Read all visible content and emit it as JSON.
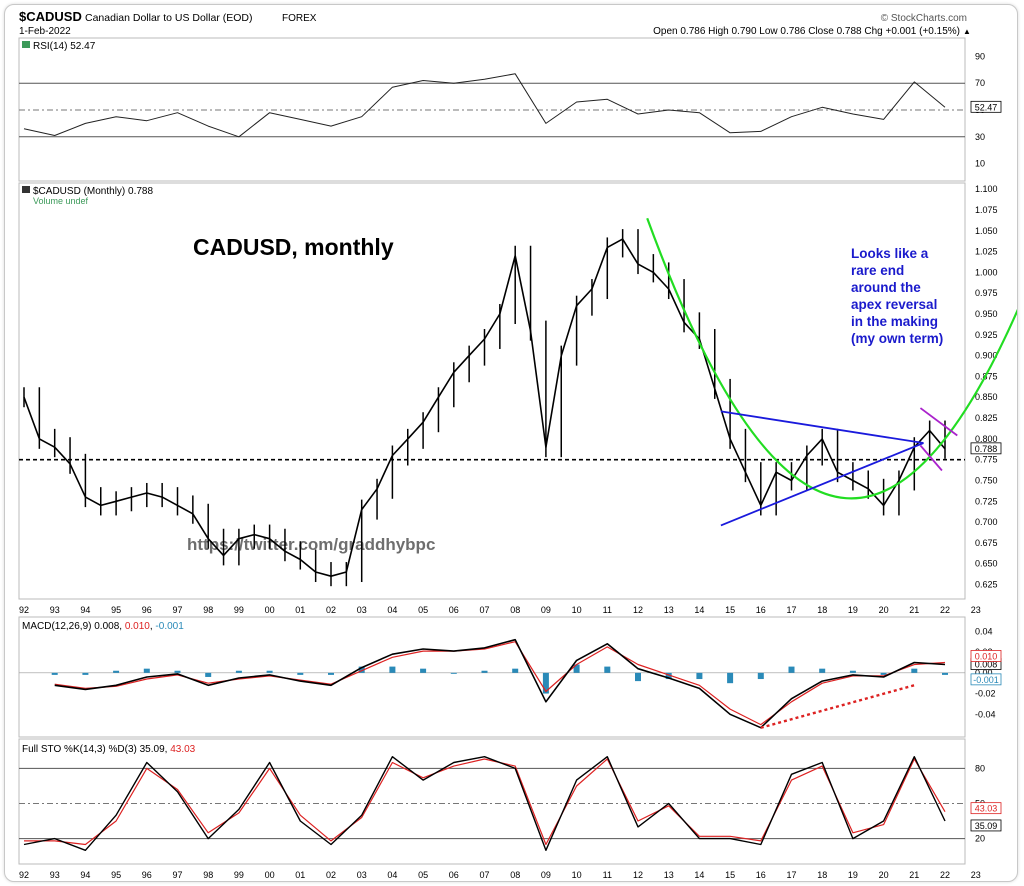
{
  "header": {
    "symbol": "$CADUSD",
    "description": "Canadian Dollar to US Dollar (EOD)",
    "exchange": "FOREX",
    "date": "1-Feb-2022",
    "brand": "© StockCharts.com",
    "ohlc": "Open 0.786  High 0.790  Low 0.786  Close 0.788  Chg +0.001 (+0.15%)",
    "arrow": "▲"
  },
  "colors": {
    "price": "#000000",
    "curve": "#22dd22",
    "trendline": "#1a1adc",
    "wedge": "#aa22cc",
    "annotation": "#1a1acc",
    "macd_signal": "#dd2222",
    "histogram": "#2a8ab8",
    "rsi_fill_ob": "#3c9a5a",
    "rsi_fill_os": "#c05050",
    "dashed_support": "#000000"
  },
  "chart_data": [
    {
      "type": "line",
      "panel": "rsi",
      "legend": "RSI(14) 52.47",
      "value_label": "52.47",
      "ylim": [
        0,
        100
      ],
      "yticks": [
        10,
        30,
        50,
        70,
        90
      ],
      "levels": [
        30,
        50,
        70
      ],
      "x": [
        1992,
        1993,
        1994,
        1995,
        1996,
        1997,
        1998,
        1999,
        2000,
        2001,
        2002,
        2003,
        2004,
        2005,
        2006,
        2007,
        2008,
        2009,
        2010,
        2011,
        2012,
        2013,
        2014,
        2015,
        2016,
        2017,
        2018,
        2019,
        2020,
        2021,
        2022
      ],
      "values": [
        36,
        31,
        40,
        45,
        42,
        48,
        38,
        30,
        48,
        43,
        38,
        45,
        67,
        72,
        70,
        73,
        77,
        40,
        56,
        58,
        47,
        50,
        48,
        33,
        34,
        45,
        52,
        47,
        43,
        71,
        52
      ]
    },
    {
      "type": "line",
      "panel": "price",
      "legend": "$CADUSD (Monthly) 0.788",
      "sub_legend": "Volume undef",
      "value_label": "0.788",
      "ylim": [
        0.61,
        1.105
      ],
      "yticks": [
        0.625,
        0.65,
        0.675,
        0.7,
        0.725,
        0.75,
        0.775,
        0.8,
        0.825,
        0.85,
        0.875,
        0.9,
        0.925,
        0.95,
        0.975,
        1.0,
        1.025,
        1.05,
        1.075,
        1.1
      ],
      "support_level": 0.775,
      "x": [
        1992,
        1992.5,
        1993,
        1993.5,
        1994,
        1994.5,
        1995,
        1995.5,
        1996,
        1996.5,
        1997,
        1997.5,
        1998,
        1998.5,
        1999,
        1999.5,
        2000,
        2000.5,
        2001,
        2001.5,
        2002,
        2002.5,
        2003,
        2003.5,
        2004,
        2004.5,
        2005,
        2005.5,
        2006,
        2006.5,
        2007,
        2007.5,
        2008,
        2008.5,
        2009,
        2009.5,
        2010,
        2010.5,
        2011,
        2011.5,
        2012,
        2012.5,
        2013,
        2013.5,
        2014,
        2014.5,
        2015,
        2015.5,
        2016,
        2016.5,
        2017,
        2017.5,
        2018,
        2018.5,
        2019,
        2019.5,
        2020,
        2020.5,
        2021,
        2021.5,
        2022
      ],
      "values": [
        0.85,
        0.8,
        0.79,
        0.77,
        0.73,
        0.72,
        0.725,
        0.73,
        0.735,
        0.73,
        0.72,
        0.71,
        0.68,
        0.66,
        0.68,
        0.685,
        0.68,
        0.665,
        0.655,
        0.64,
        0.635,
        0.64,
        0.715,
        0.74,
        0.78,
        0.8,
        0.82,
        0.85,
        0.88,
        0.9,
        0.92,
        0.95,
        1.02,
        0.93,
        0.79,
        0.9,
        0.96,
        0.98,
        1.03,
        1.04,
        1.01,
        1.0,
        0.98,
        0.94,
        0.92,
        0.86,
        0.8,
        0.76,
        0.72,
        0.76,
        0.75,
        0.78,
        0.8,
        0.76,
        0.75,
        0.74,
        0.72,
        0.75,
        0.79,
        0.81,
        0.788
      ]
    },
    {
      "type": "line",
      "panel": "macd",
      "legend_prefix": "MACD(12,26,9) 0.008, ",
      "legend_signal": "0.010",
      "legend_sep": ", ",
      "legend_hist": "-0.001",
      "value_labels": [
        "0.008",
        "0.010",
        "-0.001"
      ],
      "ylim": [
        -0.06,
        0.05
      ],
      "yticks": [
        -0.04,
        -0.02,
        0.0,
        0.02,
        0.04
      ],
      "x": [
        1993,
        1994,
        1995,
        1996,
        1997,
        1998,
        1999,
        2000,
        2001,
        2002,
        2003,
        2004,
        2005,
        2006,
        2007,
        2008,
        2009,
        2010,
        2011,
        2012,
        2013,
        2014,
        2015,
        2016,
        2017,
        2018,
        2019,
        2020,
        2021,
        2022
      ],
      "series": [
        {
          "name": "MACD",
          "values": [
            -0.012,
            -0.016,
            -0.012,
            -0.004,
            -0.001,
            -0.012,
            -0.005,
            -0.002,
            -0.008,
            -0.012,
            0.005,
            0.018,
            0.023,
            0.021,
            0.024,
            0.032,
            -0.028,
            0.012,
            0.028,
            0.004,
            -0.005,
            -0.015,
            -0.04,
            -0.053,
            -0.025,
            -0.008,
            -0.002,
            -0.004,
            0.01,
            0.008
          ]
        },
        {
          "name": "Signal",
          "values": [
            -0.011,
            -0.015,
            -0.013,
            -0.006,
            -0.002,
            -0.01,
            -0.006,
            -0.003,
            -0.007,
            -0.011,
            0.002,
            0.015,
            0.021,
            0.021,
            0.023,
            0.03,
            -0.018,
            0.008,
            0.025,
            0.008,
            -0.002,
            -0.012,
            -0.035,
            -0.05,
            -0.028,
            -0.01,
            -0.003,
            -0.003,
            0.008,
            0.01
          ]
        },
        {
          "name": "Histogram",
          "values": [
            -0.001,
            -0.001,
            0.001,
            0.002,
            0.001,
            -0.002,
            0.001,
            0.001,
            -0.001,
            -0.001,
            0.003,
            0.003,
            0.002,
            0.0,
            0.001,
            0.002,
            -0.01,
            0.004,
            0.003,
            -0.004,
            -0.003,
            -0.003,
            -0.005,
            -0.003,
            0.003,
            0.002,
            0.001,
            -0.001,
            0.002,
            -0.001
          ]
        }
      ]
    },
    {
      "type": "line",
      "panel": "stochastic",
      "legend_prefix": "Full STO %K(14,3) %D(3) 35.09, ",
      "legend_d": "43.03",
      "value_labels": [
        "43.03",
        "35.09"
      ],
      "ylim": [
        0,
        100
      ],
      "yticks": [
        20,
        50,
        80
      ],
      "levels": [
        20,
        50,
        80
      ],
      "x": [
        1992,
        1993,
        1994,
        1995,
        1996,
        1997,
        1998,
        1999,
        2000,
        2001,
        2002,
        2003,
        2004,
        2005,
        2006,
        2007,
        2008,
        2009,
        2010,
        2011,
        2012,
        2013,
        2014,
        2015,
        2016,
        2017,
        2018,
        2019,
        2020,
        2021,
        2022
      ],
      "series": [
        {
          "name": "%K",
          "values": [
            15,
            20,
            10,
            40,
            85,
            60,
            20,
            45,
            85,
            35,
            15,
            40,
            90,
            70,
            85,
            90,
            80,
            10,
            70,
            90,
            30,
            50,
            20,
            20,
            15,
            75,
            85,
            20,
            35,
            90,
            35
          ]
        },
        {
          "name": "%D",
          "values": [
            18,
            18,
            15,
            35,
            80,
            62,
            25,
            42,
            80,
            40,
            18,
            38,
            85,
            72,
            82,
            88,
            82,
            15,
            65,
            88,
            35,
            48,
            22,
            22,
            18,
            70,
            82,
            25,
            32,
            88,
            43
          ]
        }
      ]
    }
  ],
  "x_axis": {
    "labels": [
      "92",
      "93",
      "94",
      "95",
      "96",
      "97",
      "98",
      "99",
      "00",
      "01",
      "02",
      "03",
      "04",
      "05",
      "06",
      "07",
      "08",
      "09",
      "10",
      "11",
      "12",
      "13",
      "14",
      "15",
      "16",
      "17",
      "18",
      "19",
      "20",
      "21",
      "22",
      "23"
    ]
  },
  "annotations": {
    "title": "CADUSD, monthly",
    "note_lines": [
      "Looks like a",
      "rare end",
      "around the",
      "apex reversal",
      "in the making",
      "(my own term)"
    ],
    "watermark": "https://twitter.com/graddhybpc"
  }
}
